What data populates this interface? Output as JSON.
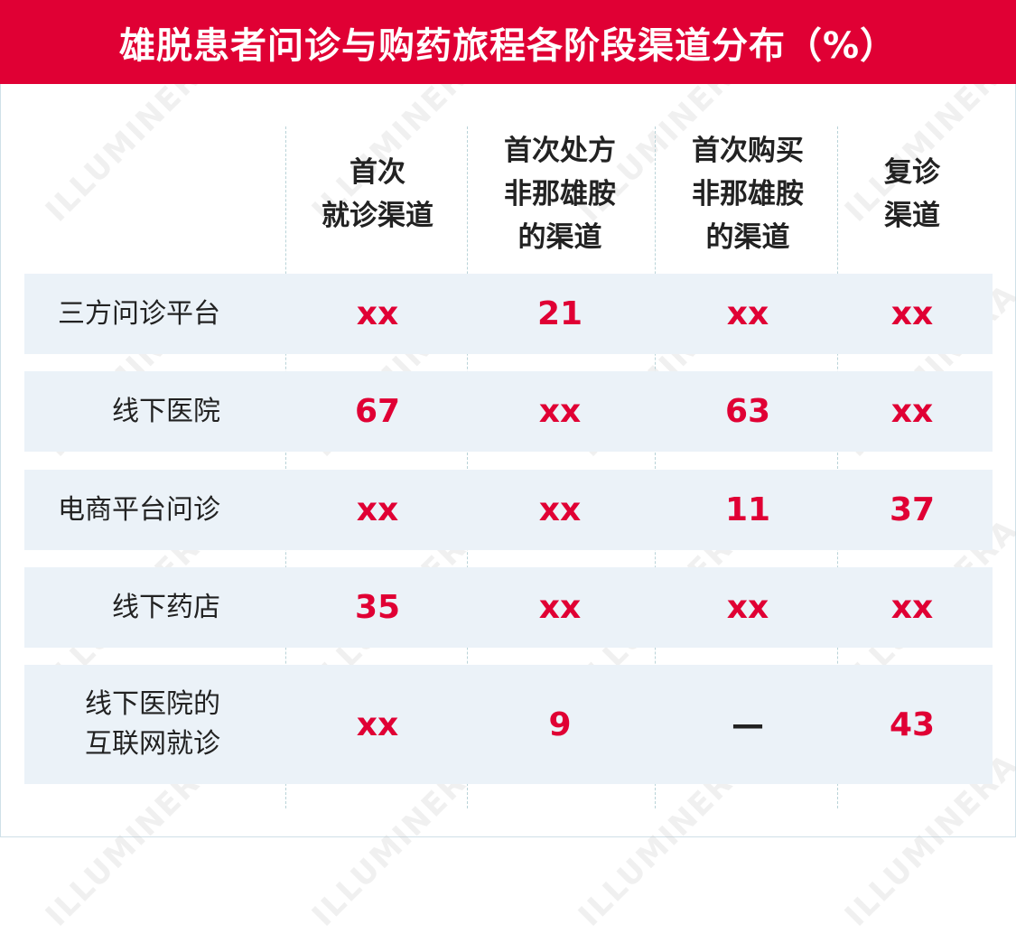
{
  "title": "雄脱患者问诊与购药旅程各阶段渠道分布（%）",
  "watermark": "ILLUMINERA",
  "colors": {
    "accent": "#e00034",
    "row_bg": "#ebf2f8",
    "text": "#222222"
  },
  "chart_data": {
    "type": "table",
    "title": "雄脱患者问诊与购药旅程各阶段渠道分布（%）",
    "columns": [
      "首次\n就诊渠道",
      "首次处方\n非那雄胺\n的渠道",
      "首次购买\n非那雄胺\n的渠道",
      "复诊\n渠道"
    ],
    "rows": [
      {
        "label": "三方问诊平台",
        "values": [
          "xx",
          "21",
          "xx",
          "xx"
        ]
      },
      {
        "label": "线下医院",
        "values": [
          "67",
          "xx",
          "63",
          "xx"
        ]
      },
      {
        "label": "电商平台问诊",
        "values": [
          "xx",
          "xx",
          "11",
          "37"
        ]
      },
      {
        "label": "线下药店",
        "values": [
          "35",
          "xx",
          "xx",
          "xx"
        ]
      },
      {
        "label": "线下医院的\n互联网就诊",
        "values": [
          "xx",
          "9",
          "—",
          "43"
        ]
      }
    ]
  }
}
